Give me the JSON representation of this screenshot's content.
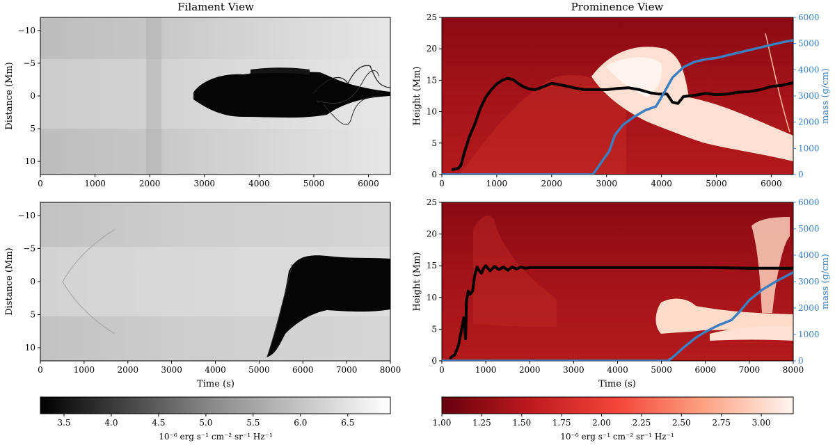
{
  "figure": {
    "titles": {
      "filament": "Filament View",
      "prominence": "Prominence View"
    }
  },
  "chart_data": [
    {
      "type": "heatmap",
      "panel": "top-left",
      "colormap": "gray",
      "title": "Filament View",
      "xlabel": "",
      "ylabel": "Distance (Mm)",
      "xlim": [
        0,
        6400
      ],
      "ylim": [
        12,
        -12
      ],
      "xticks": [
        0,
        1000,
        2000,
        3000,
        4000,
        5000,
        6000
      ],
      "yticks": [
        -10,
        -5,
        0,
        5,
        10
      ],
      "features": {
        "dark_band_start_time": 2800,
        "dark_core_extent_y": [
          -4,
          4
        ],
        "thread_extent_y": [
          -5,
          4
        ]
      }
    },
    {
      "type": "heatmap",
      "panel": "bottom-left",
      "colormap": "gray",
      "xlabel": "Time (s)",
      "ylabel": "Distance (Mm)",
      "xlim": [
        0,
        8000
      ],
      "ylim": [
        12,
        -12
      ],
      "xticks": [
        0,
        1000,
        2000,
        3000,
        4000,
        5000,
        6000,
        7000,
        8000
      ],
      "yticks": [
        -10,
        -5,
        0,
        5,
        10
      ],
      "features": {
        "dark_band_start_time": 5200,
        "dark_core_extent_y": [
          -4.5,
          5.5
        ]
      }
    },
    {
      "type": "line",
      "panel": "top-right",
      "background": "heatmap (red colormap)",
      "title": "Prominence View",
      "xlabel": "",
      "ylabel": "Height (Mm)",
      "ylabel_right": "mass (g/cm)",
      "xlim": [
        0,
        6400
      ],
      "ylim": [
        0,
        25
      ],
      "ylim_right": [
        0,
        6000
      ],
      "xticks": [
        0,
        1000,
        2000,
        3000,
        4000,
        5000,
        6000
      ],
      "yticks": [
        0,
        5,
        10,
        15,
        20,
        25
      ],
      "yticks_right": [
        0,
        1000,
        2000,
        3000,
        4000,
        5000,
        6000
      ],
      "series": [
        {
          "color": "#000000",
          "axis": "left",
          "x": [
            200,
            300,
            350,
            400,
            500,
            600,
            700,
            800,
            900,
            1000,
            1100,
            1200,
            1300,
            1400,
            1500,
            1600,
            1700,
            1800,
            2000,
            2200,
            2400,
            2600,
            2800,
            3000,
            3200,
            3400,
            3600,
            3800,
            3950,
            4100,
            4200,
            4300,
            4400,
            4600,
            4800,
            5000,
            5200,
            5400,
            5600,
            5800,
            6000,
            6200,
            6400
          ],
          "y": [
            0.8,
            1.0,
            1.5,
            3.2,
            6.0,
            8.0,
            10.5,
            12.3,
            13.5,
            14.4,
            15.0,
            15.3,
            15.1,
            14.4,
            13.9,
            13.6,
            13.5,
            13.8,
            14.5,
            14.2,
            13.8,
            13.5,
            13.5,
            13.5,
            13.7,
            13.8,
            13.5,
            13.0,
            12.8,
            12.8,
            11.5,
            11.3,
            12.4,
            12.6,
            12.9,
            12.7,
            12.8,
            13.1,
            13.2,
            13.5,
            14.0,
            14.2,
            14.6
          ]
        },
        {
          "color": "#3a7fc1",
          "axis": "right",
          "x": [
            0,
            1000,
            2000,
            2750,
            2850,
            2950,
            3050,
            3150,
            3300,
            3500,
            3700,
            3900,
            4000,
            4200,
            4400,
            4600,
            4800,
            5000,
            5200,
            5400,
            5600,
            5800,
            6000,
            6200,
            6400
          ],
          "y": [
            0,
            0,
            0,
            0,
            300,
            600,
            900,
            1500,
            1900,
            2200,
            2450,
            2600,
            2950,
            3700,
            4100,
            4300,
            4400,
            4450,
            4550,
            4650,
            4750,
            4850,
            4950,
            5050,
            5130
          ]
        }
      ]
    },
    {
      "type": "line",
      "panel": "bottom-right",
      "background": "heatmap (red colormap)",
      "xlabel": "Time (s)",
      "ylabel": "Height (Mm)",
      "ylabel_right": "mass (g/cm)",
      "xlim": [
        0,
        8000
      ],
      "ylim": [
        0,
        25
      ],
      "ylim_right": [
        0,
        6000
      ],
      "xticks": [
        0,
        1000,
        2000,
        3000,
        4000,
        5000,
        6000,
        7000,
        8000
      ],
      "yticks": [
        0,
        5,
        10,
        15,
        20,
        25
      ],
      "yticks_right": [
        0,
        1000,
        2000,
        3000,
        4000,
        5000,
        6000
      ],
      "series": [
        {
          "color": "#000000",
          "axis": "left",
          "x": [
            200,
            300,
            380,
            450,
            500,
            540,
            560,
            600,
            640,
            700,
            750,
            800,
            850,
            900,
            950,
            1000,
            1100,
            1200,
            1300,
            1400,
            1500,
            1600,
            1700,
            1800,
            1900,
            2000,
            2200,
            2500,
            3000,
            4000,
            5000,
            6000,
            7000,
            8000
          ],
          "y": [
            0.5,
            1.0,
            2.5,
            5.0,
            6.8,
            3.5,
            9.5,
            11.0,
            10.5,
            11.0,
            13.5,
            14.8,
            14.2,
            13.8,
            14.6,
            15.0,
            14.2,
            14.9,
            14.4,
            14.8,
            14.3,
            14.8,
            14.5,
            14.8,
            14.6,
            14.7,
            14.7,
            14.7,
            14.7,
            14.7,
            14.7,
            14.7,
            14.6,
            14.6
          ]
        },
        {
          "color": "#3a7fc1",
          "axis": "right",
          "x": [
            0,
            1000,
            3000,
            5000,
            5150,
            5300,
            5500,
            5800,
            6000,
            6300,
            6600,
            6800,
            7000,
            7300,
            7600,
            8000
          ],
          "y": [
            0,
            0,
            0,
            0,
            0,
            200,
            500,
            900,
            1100,
            1350,
            1550,
            1900,
            2300,
            2700,
            3000,
            3350
          ]
        }
      ]
    },
    {
      "type": "colorbar",
      "panel": "left-colorbar",
      "colormap": "gray",
      "range": [
        3.25,
        6.95
      ],
      "ticks": [
        3.5,
        4.0,
        4.5,
        5.0,
        5.5,
        6.0,
        6.5
      ],
      "tick_labels": [
        "3.5",
        "4.0",
        "4.5",
        "5.0",
        "5.5",
        "6.0",
        "6.5"
      ],
      "label": "10⁻⁶ erg s⁻¹ cm⁻² sr⁻¹ Hz⁻¹"
    },
    {
      "type": "colorbar",
      "panel": "right-colorbar",
      "colormap": "reds",
      "range": [
        1.0,
        3.2
      ],
      "ticks": [
        1.0,
        1.25,
        1.5,
        1.75,
        2.0,
        2.25,
        2.5,
        2.75,
        3.0
      ],
      "tick_labels": [
        "1.00",
        "1.25",
        "1.50",
        "1.75",
        "2.00",
        "2.25",
        "2.50",
        "2.75",
        "3.00"
      ],
      "label": "10⁻⁶ erg s⁻¹ cm⁻² sr⁻¹ Hz⁻¹"
    }
  ]
}
